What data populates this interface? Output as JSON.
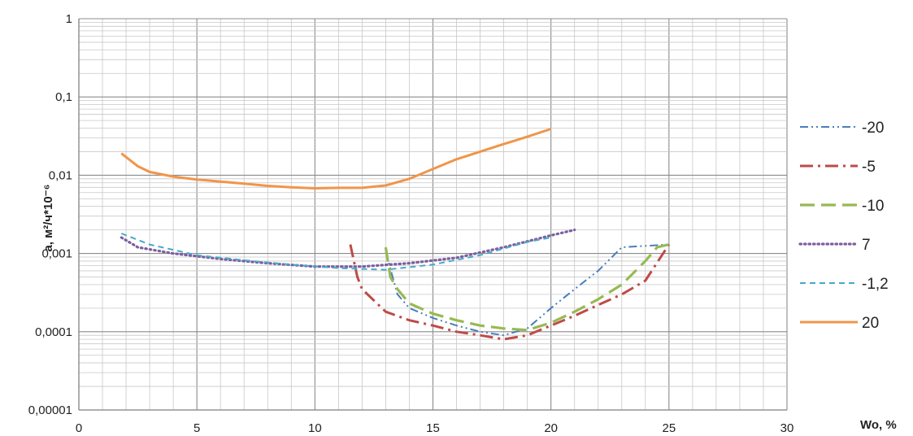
{
  "chart_data": {
    "type": "line",
    "xlabel": "Wo, %",
    "ylabel": "a, м²/ч*10⁻⁶",
    "xlim": [
      0,
      30
    ],
    "ylim": [
      1e-05,
      1
    ],
    "yscale": "log",
    "grid": true,
    "legend_position": "right",
    "x_ticks": [
      "0",
      "5",
      "10",
      "15",
      "20",
      "25",
      "30"
    ],
    "y_ticks": [
      "0,00001",
      "0,0001",
      "0,001",
      "0,01",
      "0,1",
      "1"
    ],
    "y_tick_values": [
      1e-05,
      0.0001,
      0.001,
      0.01,
      0.1,
      1
    ],
    "series": [
      {
        "name": "-20",
        "color": "#4a7ebb",
        "dash": "dashdotdot",
        "points": [
          [
            13,
            0.00105
          ],
          [
            13.5,
            0.0003
          ],
          [
            14,
            0.0002
          ],
          [
            15,
            0.00015
          ],
          [
            16,
            0.00012
          ],
          [
            17,
            0.0001
          ],
          [
            18,
            9e-05
          ],
          [
            19,
            0.00011
          ],
          [
            20,
            0.0002
          ],
          [
            21,
            0.00035
          ],
          [
            22,
            0.0006
          ],
          [
            23,
            0.0012
          ],
          [
            24,
            0.00125
          ],
          [
            25,
            0.0013
          ]
        ]
      },
      {
        "name": "-5",
        "color": "#be4b48",
        "dash": "dashdot",
        "points": [
          [
            11.5,
            0.0013
          ],
          [
            11.8,
            0.0005
          ],
          [
            12,
            0.00035
          ],
          [
            13,
            0.00018
          ],
          [
            14,
            0.00014
          ],
          [
            15,
            0.00012
          ],
          [
            16,
            0.0001
          ],
          [
            17,
            9e-05
          ],
          [
            18,
            8e-05
          ],
          [
            19,
            9e-05
          ],
          [
            20,
            0.00012
          ],
          [
            21,
            0.00016
          ],
          [
            22,
            0.00022
          ],
          [
            23,
            0.0003
          ],
          [
            24,
            0.00045
          ],
          [
            25,
            0.0013
          ]
        ]
      },
      {
        "name": "-10",
        "color": "#98b954",
        "dash": "longdash",
        "points": [
          [
            13,
            0.0012
          ],
          [
            13.2,
            0.0005
          ],
          [
            13.5,
            0.00035
          ],
          [
            14,
            0.00023
          ],
          [
            15,
            0.00017
          ],
          [
            16,
            0.00014
          ],
          [
            17,
            0.00012
          ],
          [
            18,
            0.00011
          ],
          [
            19,
            0.000105
          ],
          [
            20,
            0.00013
          ],
          [
            21,
            0.00018
          ],
          [
            22,
            0.00026
          ],
          [
            23,
            0.0004
          ],
          [
            24,
            0.0008
          ],
          [
            24.5,
            0.0012
          ],
          [
            25,
            0.0013
          ]
        ]
      },
      {
        "name": "7",
        "color": "#7d5fa0",
        "dash": "dotted",
        "points": [
          [
            1.8,
            0.0016
          ],
          [
            2.5,
            0.0012
          ],
          [
            4,
            0.001
          ],
          [
            6,
            0.00085
          ],
          [
            8,
            0.00075
          ],
          [
            10,
            0.00068
          ],
          [
            12,
            0.00068
          ],
          [
            14,
            0.00075
          ],
          [
            16,
            0.00088
          ],
          [
            18,
            0.0012
          ],
          [
            20,
            0.0017
          ],
          [
            21,
            0.002
          ]
        ]
      },
      {
        "name": "-1,2",
        "color": "#46aac5",
        "dash": "shortdash",
        "points": [
          [
            1.8,
            0.0018
          ],
          [
            3,
            0.0013
          ],
          [
            5,
            0.00095
          ],
          [
            7,
            0.00082
          ],
          [
            9,
            0.00072
          ],
          [
            11,
            0.00065
          ],
          [
            13,
            0.00062
          ],
          [
            15,
            0.00072
          ],
          [
            17,
            0.00095
          ],
          [
            19,
            0.0014
          ],
          [
            20,
            0.0016
          ]
        ]
      },
      {
        "name": "20",
        "color": "#f0954a",
        "dash": "solid",
        "points": [
          [
            1.8,
            0.019
          ],
          [
            2.5,
            0.013
          ],
          [
            3,
            0.011
          ],
          [
            4,
            0.0096
          ],
          [
            5,
            0.0088
          ],
          [
            6,
            0.0083
          ],
          [
            7,
            0.0078
          ],
          [
            8,
            0.0073
          ],
          [
            9,
            0.007
          ],
          [
            10,
            0.0068
          ],
          [
            11,
            0.0069
          ],
          [
            12,
            0.0069
          ],
          [
            13,
            0.0074
          ],
          [
            14,
            0.009
          ],
          [
            15,
            0.012
          ],
          [
            16,
            0.016
          ],
          [
            17,
            0.02
          ],
          [
            18,
            0.025
          ],
          [
            19,
            0.031
          ],
          [
            20,
            0.039
          ]
        ]
      }
    ]
  }
}
